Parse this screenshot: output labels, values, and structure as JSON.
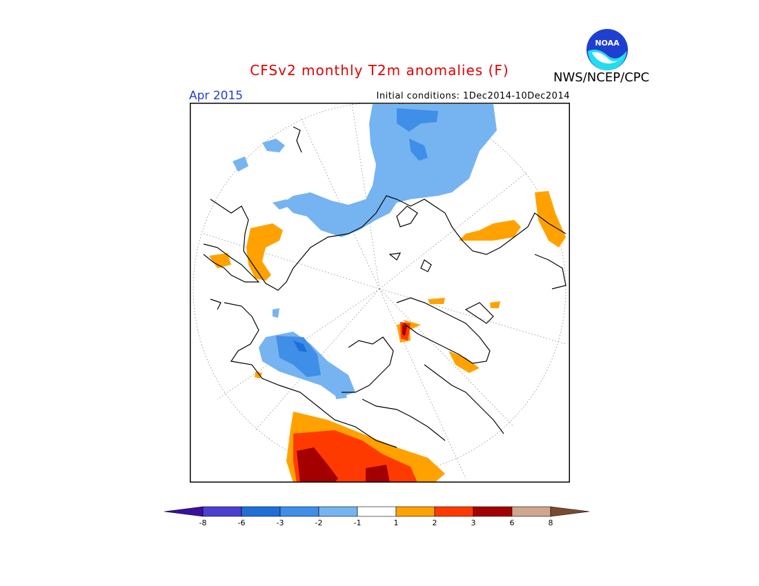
{
  "header": {
    "title": "CFSv2 monthly T2m anomalies (F)",
    "agency": "NWS/NCEP/CPC",
    "logo_text": "NOAA",
    "valid_month": "Apr 2015",
    "initial_conditions": "Initial conditions: 1Dec2014-10Dec2014"
  },
  "colors": {
    "title": "#e00000",
    "month": "#1f3fd0",
    "neg_8": "#3b0fa0",
    "neg_6": "#4a3fd0",
    "neg_3": "#1f6fd8",
    "neg_2": "#3f8fe8",
    "neg_1": "#75b4f0",
    "neutral": "#ffffff",
    "pos_1": "#ffa200",
    "pos_2": "#ff3a00",
    "pos_3": "#a40000",
    "pos_6": "#d0a690",
    "pos_8": "#7a4a30"
  },
  "legend": {
    "ticks": [
      "-8",
      "-6",
      "-3",
      "-2",
      "-1",
      "1",
      "2",
      "3",
      "6",
      "8"
    ],
    "swatches": [
      {
        "name": "below -8",
        "color": "#3b0fa0"
      },
      {
        "name": "-8 to -6",
        "color": "#4a3fd0"
      },
      {
        "name": "-6 to -3",
        "color": "#1f6fd8"
      },
      {
        "name": "-3 to -2",
        "color": "#3f8fe8"
      },
      {
        "name": "-2 to -1",
        "color": "#75b4f0"
      },
      {
        "name": "-1 to 1",
        "color": "#ffffff"
      },
      {
        "name": "1 to 2",
        "color": "#ffa200"
      },
      {
        "name": "2 to 3",
        "color": "#ff3a00"
      },
      {
        "name": "3 to 6",
        "color": "#a40000"
      },
      {
        "name": "6 to 8",
        "color": "#d0a690"
      },
      {
        "name": "above 8",
        "color": "#7a4a30"
      }
    ]
  }
}
